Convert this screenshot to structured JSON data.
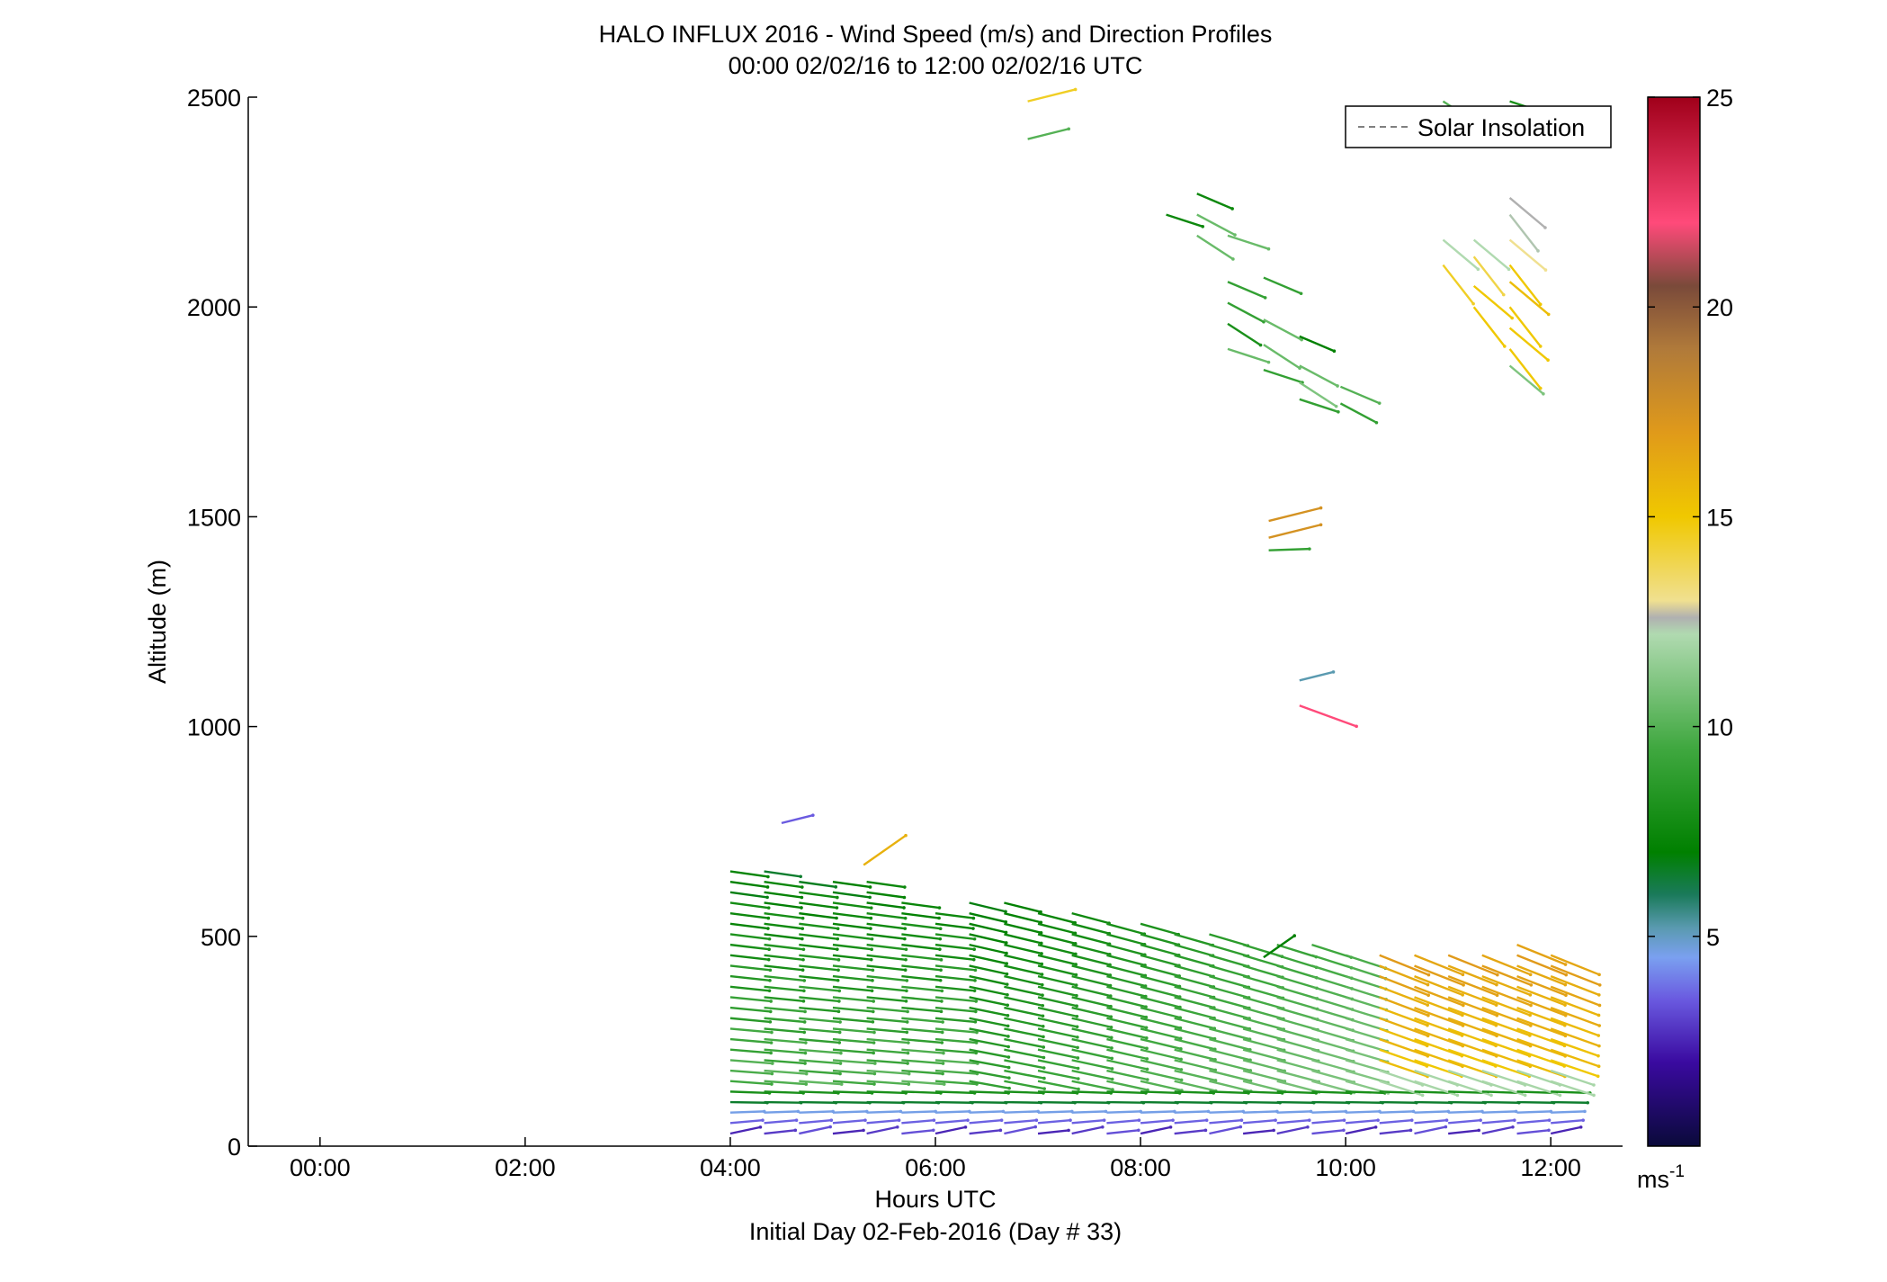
{
  "chart_data": {
    "type": "quiver",
    "title": "HALO INFLUX 2016 - Wind Speed (m/s) and Direction Profiles",
    "subtitle": "00:00 02/02/16 to 12:00 02/02/16  UTC",
    "xlabel": "Hours UTC",
    "xlabel2": "Initial Day 02-Feb-2016 (Day # 33)",
    "ylabel": "Altitude (m)",
    "xlim": [
      -0.7,
      12.7
    ],
    "ylim": [
      0,
      2500
    ],
    "xticks": [
      {
        "value": 0,
        "label": "00:00"
      },
      {
        "value": 2,
        "label": "02:00"
      },
      {
        "value": 4,
        "label": "04:00"
      },
      {
        "value": 6,
        "label": "06:00"
      },
      {
        "value": 8,
        "label": "08:00"
      },
      {
        "value": 10,
        "label": "10:00"
      },
      {
        "value": 12,
        "label": "12:00"
      }
    ],
    "yticks": [
      0,
      500,
      1000,
      1500,
      2000,
      2500
    ],
    "legend": {
      "label": "Solar Insolation",
      "position": "top-right",
      "style": "dashed",
      "color": "#808080"
    },
    "colorbar": {
      "range": [
        0,
        25
      ],
      "ticks": [
        5,
        10,
        15,
        20,
        25
      ],
      "unit": "ms",
      "unit_exp": "-1",
      "stops": [
        {
          "v": 0,
          "c": "#0a0a3a"
        },
        {
          "v": 2,
          "c": "#3a0aa0"
        },
        {
          "v": 3.5,
          "c": "#6a5ae0"
        },
        {
          "v": 4.5,
          "c": "#7aa0f0"
        },
        {
          "v": 5.2,
          "c": "#5a9ab0"
        },
        {
          "v": 6,
          "c": "#1a7a5a"
        },
        {
          "v": 7,
          "c": "#008000"
        },
        {
          "v": 9.5,
          "c": "#40a840"
        },
        {
          "v": 12.2,
          "c": "#b0dab0"
        },
        {
          "v": 12.6,
          "c": "#b0b0b0"
        },
        {
          "v": 13,
          "c": "#f0e090"
        },
        {
          "v": 15,
          "c": "#f0c800"
        },
        {
          "v": 17,
          "c": "#e09a1a"
        },
        {
          "v": 19,
          "c": "#b07a3a"
        },
        {
          "v": 20.5,
          "c": "#7a4a3a"
        },
        {
          "v": 22,
          "c": "#ff4a7a"
        },
        {
          "v": 25,
          "c": "#a0001a"
        }
      ]
    },
    "profile_times": [
      4.0,
      4.33,
      4.67,
      5.0,
      5.33,
      5.67,
      6.0,
      6.33,
      6.67,
      7.0,
      7.33,
      7.67,
      8.0,
      8.33,
      8.67,
      9.0,
      9.33,
      9.67,
      10.0,
      10.33,
      10.67,
      11.0,
      11.33,
      11.67,
      12.0
    ],
    "low_level": {
      "altitudes": [
        30,
        55,
        80,
        105,
        130,
        155,
        180,
        205,
        230,
        255,
        280,
        305,
        330,
        355,
        380,
        405,
        430,
        455,
        480,
        505,
        530,
        555,
        580,
        605,
        630,
        655
      ],
      "tops": [
        660,
        660,
        650,
        650,
        640,
        600,
        560,
        580,
        590,
        560,
        560,
        550,
        540,
        520,
        510,
        500,
        490,
        480,
        470,
        470,
        470,
        470,
        470,
        480,
        470
      ],
      "example_profile_at_08": [
        {
          "alt": 30,
          "speed": 3.5,
          "dir": "SW"
        },
        {
          "alt": 80,
          "speed": 5.0,
          "dir": "W"
        },
        {
          "alt": 130,
          "speed": 7.5,
          "dir": "W"
        },
        {
          "alt": 230,
          "speed": 10.5,
          "dir": "NW"
        },
        {
          "alt": 330,
          "speed": 9.5,
          "dir": "NW"
        },
        {
          "alt": 430,
          "speed": 8.0,
          "dir": "NW"
        },
        {
          "alt": 530,
          "speed": 7.5,
          "dir": "NW"
        }
      ],
      "example_profile_at_1130": [
        {
          "alt": 30,
          "speed": 4.5,
          "dir": "W"
        },
        {
          "alt": 80,
          "speed": 6.5,
          "dir": "W"
        },
        {
          "alt": 130,
          "speed": 9.0,
          "dir": "W"
        },
        {
          "alt": 230,
          "speed": 15.0,
          "dir": "NW"
        },
        {
          "alt": 330,
          "speed": 16.0,
          "dir": "NW"
        },
        {
          "alt": 430,
          "speed": 15.5,
          "dir": "NW"
        }
      ]
    },
    "isolated_vectors": [
      {
        "t": 4.5,
        "alt": 770,
        "speed": 3.5,
        "dir": "WSW"
      },
      {
        "t": 5.3,
        "alt": 670,
        "speed": 16.0,
        "dir": "SW"
      },
      {
        "t": 6.9,
        "alt": 2490,
        "speed": 14.5,
        "dir": "WSW"
      },
      {
        "t": 6.9,
        "alt": 2400,
        "speed": 10.0,
        "dir": "WSW"
      },
      {
        "t": 9.25,
        "alt": 1490,
        "speed": 17.5,
        "dir": "WSW"
      },
      {
        "t": 9.25,
        "alt": 1450,
        "speed": 17.5,
        "dir": "WSW"
      },
      {
        "t": 9.25,
        "alt": 1420,
        "speed": 9.0,
        "dir": "W"
      },
      {
        "t": 9.55,
        "alt": 1110,
        "speed": 5.2,
        "dir": "WSW"
      },
      {
        "t": 9.55,
        "alt": 1050,
        "speed": 22.0,
        "dir": "NW"
      },
      {
        "t": 9.2,
        "alt": 450,
        "speed": 7.0,
        "dir": "SW"
      }
    ],
    "upper_vectors_green": [
      {
        "t": 8.25,
        "alt": 2220,
        "speed": 7.5
      },
      {
        "t": 8.55,
        "alt": 2270,
        "speed": 7.5
      },
      {
        "t": 8.55,
        "alt": 2220,
        "speed": 10.5
      },
      {
        "t": 8.55,
        "alt": 2170,
        "speed": 10.5
      },
      {
        "t": 8.85,
        "alt": 2170,
        "speed": 10.5
      },
      {
        "t": 8.85,
        "alt": 2060,
        "speed": 9.0
      },
      {
        "t": 8.85,
        "alt": 2010,
        "speed": 9.0
      },
      {
        "t": 8.85,
        "alt": 1960,
        "speed": 8.0
      },
      {
        "t": 8.85,
        "alt": 1900,
        "speed": 10.5
      },
      {
        "t": 9.2,
        "alt": 2070,
        "speed": 9.0
      },
      {
        "t": 9.2,
        "alt": 1970,
        "speed": 10.5
      },
      {
        "t": 9.2,
        "alt": 1910,
        "speed": 10.5
      },
      {
        "t": 9.2,
        "alt": 1850,
        "speed": 9.0
      },
      {
        "t": 9.55,
        "alt": 1930,
        "speed": 7.0
      },
      {
        "t": 9.55,
        "alt": 1860,
        "speed": 10.5
      },
      {
        "t": 9.55,
        "alt": 1820,
        "speed": 11.0
      },
      {
        "t": 9.55,
        "alt": 1780,
        "speed": 9.0
      },
      {
        "t": 9.95,
        "alt": 1810,
        "speed": 10.0
      },
      {
        "t": 9.95,
        "alt": 1770,
        "speed": 9.0
      },
      {
        "t": 10.95,
        "alt": 2490,
        "speed": 10.0
      },
      {
        "t": 11.6,
        "alt": 2490,
        "speed": 8.0
      }
    ],
    "upper_vectors_yellow": [
      {
        "t": 10.95,
        "alt": 2160,
        "speed": 12.2
      },
      {
        "t": 10.95,
        "alt": 2100,
        "speed": 14.5
      },
      {
        "t": 11.25,
        "alt": 2160,
        "speed": 12.2
      },
      {
        "t": 11.25,
        "alt": 2120,
        "speed": 14.0
      },
      {
        "t": 11.25,
        "alt": 2050,
        "speed": 15.0
      },
      {
        "t": 11.25,
        "alt": 2000,
        "speed": 15.0
      },
      {
        "t": 11.6,
        "alt": 2260,
        "speed": 12.6
      },
      {
        "t": 11.6,
        "alt": 2220,
        "speed": 12.4
      },
      {
        "t": 11.6,
        "alt": 2160,
        "speed": 13.0
      },
      {
        "t": 11.6,
        "alt": 2100,
        "speed": 15.0
      },
      {
        "t": 11.6,
        "alt": 2060,
        "speed": 15.5
      },
      {
        "t": 11.6,
        "alt": 2000,
        "speed": 15.0
      },
      {
        "t": 11.6,
        "alt": 1950,
        "speed": 15.0
      },
      {
        "t": 11.6,
        "alt": 1900,
        "speed": 15.0
      },
      {
        "t": 11.6,
        "alt": 1860,
        "speed": 11.0
      }
    ]
  }
}
